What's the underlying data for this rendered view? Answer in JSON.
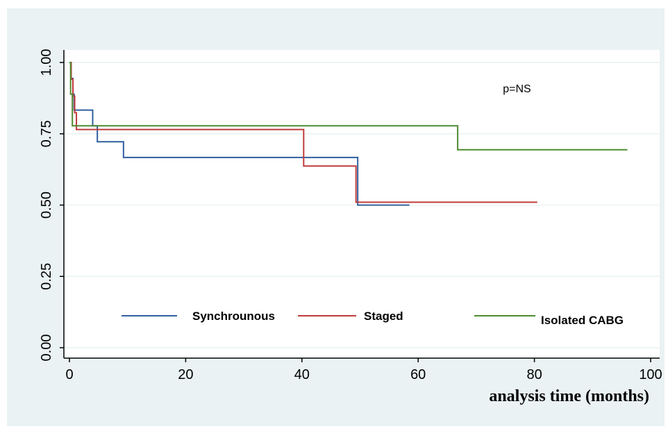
{
  "chart_data": {
    "type": "line",
    "step": true,
    "title": "",
    "xlabel": "analysis time (months)",
    "ylabel": "",
    "xlim": [
      0,
      100
    ],
    "ylim": [
      0,
      1
    ],
    "x_ticks": [
      0,
      20,
      40,
      60,
      80,
      100
    ],
    "y_ticks": [
      "0.00",
      "0.25",
      "0.50",
      "0.75",
      "1.00"
    ],
    "grid": true,
    "annotations": [
      {
        "text": "p=NS",
        "x": 77,
        "y": 0.91
      }
    ],
    "legend_position": "bottom-inside",
    "series": [
      {
        "name": "Synchrounous",
        "color": "#2f5f9e",
        "points": [
          [
            0,
            1.0
          ],
          [
            0.3,
            0.944
          ],
          [
            0.6,
            0.889
          ],
          [
            0.8,
            0.833
          ],
          [
            4,
            0.778
          ],
          [
            4.8,
            0.722
          ],
          [
            9.3,
            0.667
          ],
          [
            49.6,
            0.5
          ],
          [
            58.5,
            0.5
          ]
        ]
      },
      {
        "name": "Staged",
        "color": "#bf3b3b",
        "points": [
          [
            0,
            1.0
          ],
          [
            0.3,
            0.941
          ],
          [
            0.6,
            0.882
          ],
          [
            0.9,
            0.824
          ],
          [
            1.2,
            0.765
          ],
          [
            40.3,
            0.637
          ],
          [
            49.3,
            0.51
          ],
          [
            80.5,
            0.51
          ]
        ]
      },
      {
        "name": "Isolated CABG",
        "color": "#4e8a2e",
        "points": [
          [
            0,
            1.0
          ],
          [
            0.2,
            0.889
          ],
          [
            0.5,
            0.778
          ],
          [
            66.8,
            0.778
          ],
          [
            66.8,
            0.694
          ],
          [
            96,
            0.694
          ]
        ]
      }
    ]
  }
}
